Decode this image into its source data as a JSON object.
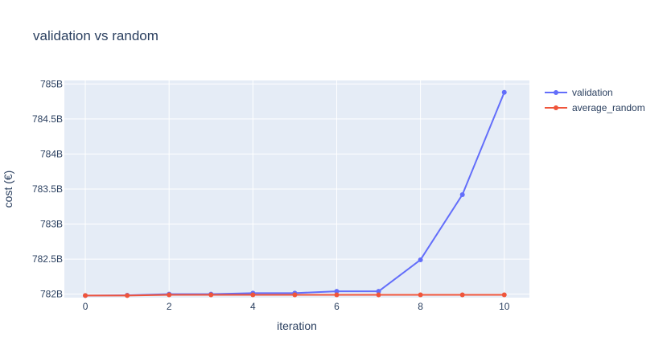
{
  "chart_data": {
    "type": "line",
    "title": "validation vs random",
    "xlabel": "iteration",
    "ylabel": "cost (€)",
    "x": [
      0,
      1,
      2,
      3,
      4,
      5,
      6,
      7,
      8,
      9,
      10
    ],
    "xlim": [
      -0.5,
      10.6
    ],
    "ylim": [
      781.95,
      785.05
    ],
    "x_ticks": [
      0,
      2,
      4,
      6,
      8,
      10
    ],
    "x_tick_labels": [
      "0",
      "2",
      "4",
      "6",
      "8",
      "10"
    ],
    "y_ticks": [
      782,
      782.5,
      783,
      783.5,
      784,
      784.5,
      785
    ],
    "y_tick_labels": [
      "782B",
      "782.5B",
      "783B",
      "783.5B",
      "784B",
      "784.5B",
      "785B"
    ],
    "grid": true,
    "legend_position": "top-right",
    "series": [
      {
        "name": "validation",
        "color": "#636efa",
        "mode": "lines+markers",
        "values": [
          781.98,
          781.985,
          782.0,
          782.0,
          782.015,
          782.015,
          782.04,
          782.04,
          782.49,
          783.42,
          784.88
        ]
      },
      {
        "name": "average_random",
        "color": "#ef553b",
        "mode": "lines+markers",
        "values": [
          781.98,
          781.98,
          781.99,
          781.99,
          781.99,
          781.99,
          781.99,
          781.99,
          781.99,
          781.99,
          781.99
        ]
      }
    ]
  },
  "colors": {
    "plot_background": "#e5ecf6",
    "grid": "#ffffff",
    "text": "#2a3f5f"
  }
}
